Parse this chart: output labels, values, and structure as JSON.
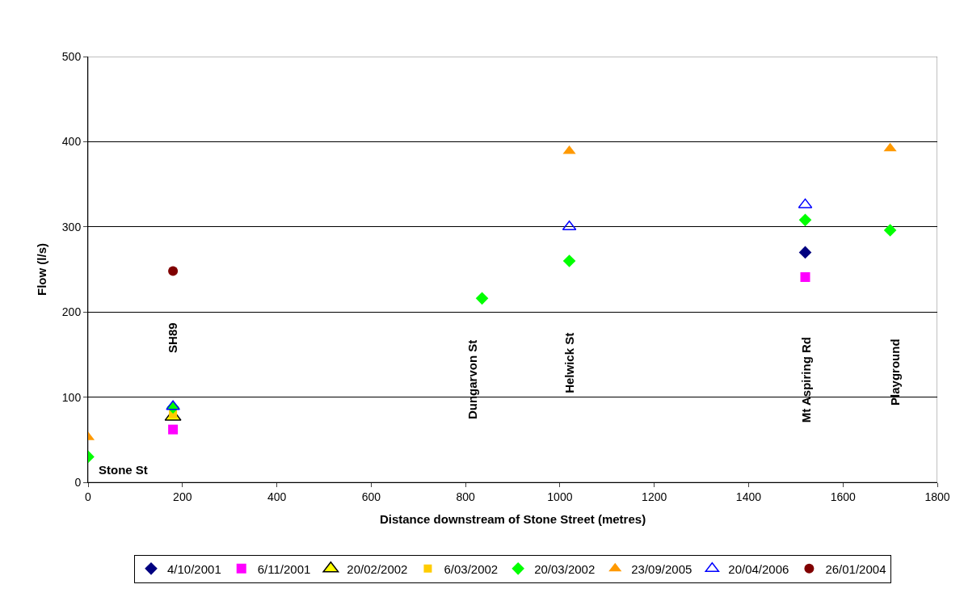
{
  "chart_data": {
    "type": "scatter",
    "xlabel": "Distance downstream of Stone Street (metres)",
    "ylabel": "Flow (l/s)",
    "xlim": [
      0,
      1800
    ],
    "xticks": [
      0,
      200,
      400,
      600,
      800,
      1000,
      1200,
      1400,
      1600,
      1800
    ],
    "ylim": [
      0,
      500
    ],
    "yticks": [
      0,
      100,
      200,
      300,
      400,
      500
    ],
    "grid": "y",
    "legend": "bottom",
    "series": [
      {
        "name": "4/10/2001",
        "color": "#000080",
        "marker": "diamond",
        "x": [
          1520
        ],
        "values": [
          270
        ]
      },
      {
        "name": "6/11/2001",
        "color": "#ff00ff",
        "marker": "square",
        "x": [
          180,
          1520
        ],
        "values": [
          62,
          241
        ]
      },
      {
        "name": "20/02/2002",
        "color": "#ffff00",
        "marker": "triangle",
        "x": [
          180
        ],
        "values": [
          77
        ]
      },
      {
        "name": "6/03/2002",
        "color": "#ffcc00",
        "marker": "square",
        "x": [
          180
        ],
        "values": [
          80
        ]
      },
      {
        "name": "20/03/2002",
        "color": "#00ff00",
        "marker": "diamond",
        "x": [
          0,
          180,
          835,
          1020,
          1520,
          1700
        ],
        "values": [
          30,
          88,
          216,
          260,
          308,
          296
        ]
      },
      {
        "name": "23/09/2005",
        "color": "#ff9900",
        "marker": "triangle",
        "x": [
          0,
          1020,
          1700
        ],
        "values": [
          53,
          389,
          392
        ]
      },
      {
        "name": "20/04/2006",
        "color": "#0000ff",
        "marker": "triangle",
        "x": [
          180,
          1020,
          1520
        ],
        "values": [
          89,
          300,
          326
        ]
      },
      {
        "name": "26/01/2004",
        "color": "#800000",
        "marker": "circle",
        "x": [
          180
        ],
        "values": [
          248
        ]
      }
    ],
    "annotations": [
      "Stone St",
      "SH89",
      "Dungarvon St",
      "Helwick St",
      "Mt Aspiring Rd",
      "Playground"
    ]
  }
}
